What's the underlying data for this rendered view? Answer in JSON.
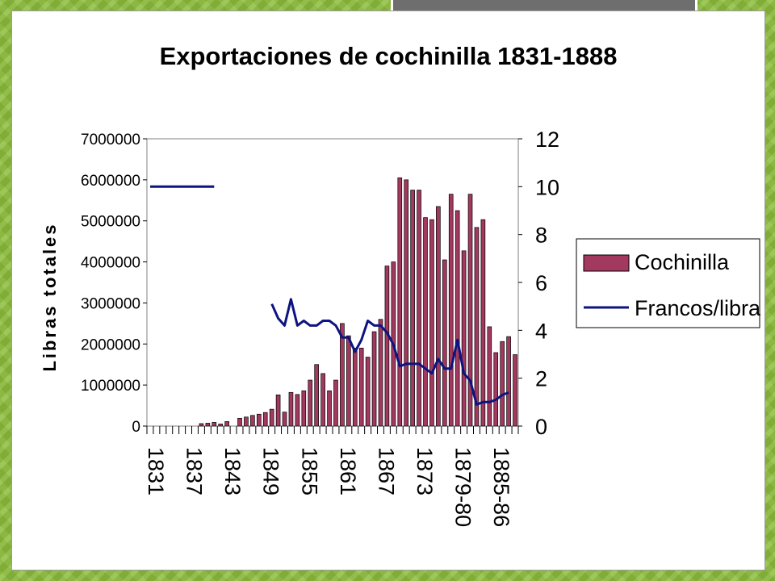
{
  "slide": {
    "accent_color": "#8bbd3a",
    "tab_color": "#6e6e6e"
  },
  "chart_data": {
    "type": "bar+line",
    "title": "Exportaciones de cochinilla 1831-1888",
    "ylabel": "Libras totales",
    "y2label": "",
    "xlabel": "",
    "ylim": [
      0,
      7000000
    ],
    "yticks": [
      "0",
      "1000000",
      "2000000",
      "3000000",
      "4000000",
      "5000000",
      "6000000",
      "7000000"
    ],
    "y2lim": [
      0,
      12
    ],
    "y2ticks": [
      "0",
      "2",
      "4",
      "6",
      "8",
      "10",
      "12"
    ],
    "xtick_labels": [
      {
        "index": 0,
        "label": "1831"
      },
      {
        "index": 6,
        "label": "1837"
      },
      {
        "index": 12,
        "label": "1843"
      },
      {
        "index": 18,
        "label": "1849"
      },
      {
        "index": 24,
        "label": "1855"
      },
      {
        "index": 30,
        "label": "1861"
      },
      {
        "index": 36,
        "label": "1867"
      },
      {
        "index": 42,
        "label": "1873"
      },
      {
        "index": 48,
        "label": "1879-80"
      },
      {
        "index": 54,
        "label": "1885-86"
      }
    ],
    "legend": {
      "position": "right",
      "entries": [
        "Cochinilla",
        "Francos/libra"
      ]
    },
    "grid": false,
    "series": [
      {
        "name": "Cochinilla",
        "type": "bar",
        "color": "#a3395f",
        "values": [
          0,
          0,
          0,
          0,
          0,
          0,
          0,
          0,
          60000,
          70000,
          90000,
          50000,
          110000,
          0,
          190000,
          220000,
          260000,
          290000,
          330000,
          410000,
          760000,
          340000,
          820000,
          770000,
          860000,
          1120000,
          1500000,
          1280000,
          860000,
          1120000,
          2500000,
          2200000,
          1900000,
          1900000,
          1680000,
          2300000,
          2600000,
          3900000,
          4000000,
          6050000,
          6000000,
          5750000,
          5750000,
          5080000,
          5030000,
          5350000,
          4050000,
          5650000,
          5250000,
          4270000,
          5650000,
          4840000,
          5030000,
          2420000,
          1790000,
          2060000,
          2180000,
          1740000
        ]
      },
      {
        "name": "Francos/libra",
        "type": "line",
        "axis": "right",
        "color": "#0d1380",
        "segments": [
          {
            "start_index": 0,
            "values": [
              10,
              10,
              10,
              10,
              10,
              10,
              10,
              10,
              10,
              10,
              10
            ]
          },
          {
            "start_index": 19,
            "values": [
              5.1,
              4.5,
              4.2,
              5.3,
              4.2,
              4.4,
              4.2,
              4.2,
              4.4,
              4.4,
              4.2,
              3.7,
              3.7,
              3.1,
              3.6,
              4.4,
              4.2,
              4.2,
              3.9,
              3.4,
              2.5,
              2.6,
              2.6,
              2.6,
              2.4,
              2.2,
              2.8,
              2.4,
              2.4,
              3.6,
              2.2,
              1.9,
              0.9,
              1.0,
              1.0,
              1.1,
              1.3,
              1.4
            ]
          }
        ]
      }
    ]
  }
}
